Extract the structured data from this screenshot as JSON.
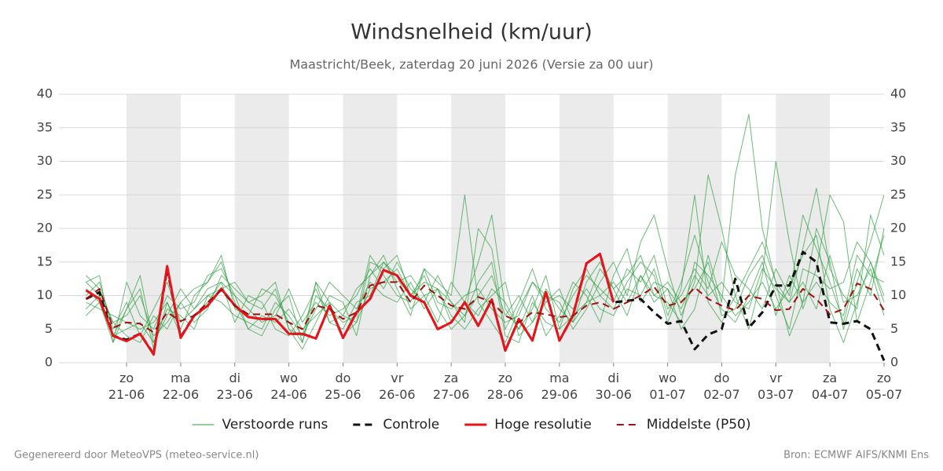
{
  "chart_data": {
    "type": "line",
    "title": "Windsnelheid (km/uur)",
    "subtitle": "Maastricht/Beek, zaterdag 20 juni 2026 (Versie za 00 uur)",
    "footer_left": "Gegenereerd door MeteoVPS (meteo-service.nl)",
    "footer_right": "Bron: ECMWF AIFS/KNMI Ens",
    "xlim": [
      -0.25,
      15
    ],
    "ylim": [
      0,
      40
    ],
    "yticks": [
      0,
      5,
      10,
      15,
      20,
      25,
      30,
      35,
      40
    ],
    "xticks": [
      {
        "value": 1,
        "label": "zo 21-06"
      },
      {
        "value": 2,
        "label": "ma 22-06"
      },
      {
        "value": 3,
        "label": "di 23-06"
      },
      {
        "value": 4,
        "label": "wo 24-06"
      },
      {
        "value": 5,
        "label": "do 25-06"
      },
      {
        "value": 6,
        "label": "vr 26-06"
      },
      {
        "value": 7,
        "label": "za 27-06"
      },
      {
        "value": 8,
        "label": "zo 28-06"
      },
      {
        "value": 9,
        "label": "ma 29-06"
      },
      {
        "value": 10,
        "label": "di 30-06"
      },
      {
        "value": 11,
        "label": "wo 01-07"
      },
      {
        "value": 12,
        "label": "do 02-07"
      },
      {
        "value": 13,
        "label": "vr 03-07"
      },
      {
        "value": 14,
        "label": "za 04-07"
      },
      {
        "value": 15,
        "label": "zo 05-07"
      }
    ],
    "grid": true,
    "shade_alternate_days": true,
    "right_axis": true,
    "x": [
      0.25,
      0.5,
      0.75,
      1,
      1.25,
      1.5,
      1.75,
      2,
      2.25,
      2.5,
      2.75,
      3,
      3.25,
      3.5,
      3.75,
      4,
      4.25,
      4.5,
      4.75,
      5,
      5.25,
      5.5,
      5.75,
      6,
      6.25,
      6.5,
      6.75,
      7,
      7.25,
      7.5,
      7.75,
      8,
      8.25,
      8.5,
      8.75,
      9,
      9.25,
      9.5,
      9.75,
      10,
      10.25,
      10.5,
      10.75,
      11,
      11.25,
      11.5,
      11.75,
      12,
      12.25,
      12.5,
      12.75,
      13,
      13.25,
      13.5,
      13.75,
      14,
      14.25,
      14.5,
      14.75,
      15
    ],
    "ensemble": {
      "name": "Verstoorde runs",
      "color": "#2e9e3e",
      "members": [
        [
          12,
          13,
          3,
          8,
          11,
          2,
          9,
          5,
          10,
          12,
          15,
          9,
          5,
          4,
          8,
          10,
          3,
          12,
          9,
          4,
          6,
          15,
          14,
          16,
          10,
          13,
          8,
          5,
          7,
          12,
          15,
          4,
          3,
          9,
          6,
          5,
          11,
          14,
          10,
          8,
          12,
          15,
          13,
          6,
          11,
          25,
          9,
          6,
          10,
          14,
          18,
          12,
          4,
          9,
          20,
          15,
          5,
          12,
          18,
          25
        ],
        [
          8,
          10,
          6,
          4,
          3,
          7,
          5,
          9,
          6,
          8,
          13,
          11,
          9,
          10,
          12,
          5,
          2,
          6,
          10,
          9,
          4,
          13,
          16,
          11,
          7,
          14,
          12,
          10,
          25,
          9,
          6,
          3,
          8,
          12,
          10,
          9,
          5,
          8,
          12,
          15,
          10,
          18,
          22,
          14,
          7,
          12,
          28,
          20,
          10,
          5,
          13,
          30,
          18,
          8,
          14,
          25,
          21,
          6,
          12,
          19
        ],
        [
          10,
          12,
          5,
          9,
          4,
          8,
          12,
          6,
          8,
          11,
          12,
          6,
          10,
          9,
          5,
          4,
          7,
          11,
          6,
          5,
          9,
          10,
          15,
          13,
          8,
          10,
          6,
          12,
          9,
          15,
          22,
          8,
          5,
          10,
          4,
          7,
          12,
          10,
          6,
          13,
          17,
          9,
          12,
          11,
          5,
          8,
          16,
          9,
          28,
          37,
          20,
          12,
          9,
          17,
          26,
          14,
          10,
          8,
          22,
          16
        ],
        [
          7,
          9,
          4,
          5,
          6,
          3,
          8,
          7,
          5,
          10,
          9,
          7,
          6,
          5,
          9,
          7,
          4,
          8,
          12,
          10,
          8,
          12,
          10,
          9,
          12,
          8,
          11,
          7,
          5,
          8,
          10,
          12,
          4,
          6,
          11,
          8,
          6,
          9,
          14,
          11,
          7,
          13,
          10,
          9,
          6,
          15,
          13,
          10,
          7,
          9,
          12,
          8,
          11,
          16,
          19,
          8,
          3,
          9,
          15,
          10
        ],
        [
          11,
          9,
          3,
          12,
          7,
          5,
          10,
          8,
          9,
          13,
          14,
          10,
          8,
          6,
          7,
          11,
          6,
          9,
          7,
          8,
          10,
          14,
          11,
          15,
          11,
          9,
          13,
          9,
          6,
          20,
          17,
          5,
          9,
          14,
          8,
          6,
          10,
          13,
          11,
          9,
          14,
          12,
          16,
          8,
          10,
          14,
          11,
          18,
          13,
          11,
          8,
          14,
          10,
          22,
          17,
          12,
          6,
          14,
          10,
          20
        ],
        [
          13,
          11,
          6,
          7,
          10,
          4,
          6,
          9,
          11,
          12,
          16,
          8,
          7,
          11,
          10,
          6,
          3,
          10,
          8,
          6,
          7,
          16,
          13,
          10,
          9,
          14,
          9,
          8,
          10,
          11,
          8,
          6,
          7,
          12,
          9,
          10,
          8,
          11,
          8,
          7,
          11,
          10,
          14,
          7,
          12,
          19,
          12,
          8,
          6,
          10,
          15,
          7,
          13,
          9,
          12,
          9,
          7,
          16,
          13,
          12
        ],
        [
          9,
          8,
          7,
          6,
          5,
          6,
          9,
          4,
          7,
          9,
          12,
          10,
          5,
          7,
          6,
          8,
          5,
          7,
          9,
          7,
          6,
          11,
          12,
          14,
          10,
          12,
          11,
          6,
          9,
          7,
          11,
          9,
          5,
          8,
          13,
          5,
          7,
          9,
          10,
          12,
          9,
          13,
          9,
          11,
          8,
          13,
          10,
          12,
          9,
          8,
          14,
          11,
          9,
          12,
          8,
          16,
          9,
          10,
          14,
          7
        ],
        [
          12,
          10,
          4,
          8,
          13,
          3,
          7,
          11,
          8,
          10,
          11,
          12,
          9,
          8,
          11,
          5,
          4,
          12,
          6,
          7,
          11,
          13,
          15,
          12,
          13,
          10,
          11,
          9,
          7,
          10,
          13,
          7,
          10,
          6,
          9,
          11,
          6,
          12,
          15,
          11,
          13,
          16,
          10,
          12,
          9,
          11,
          15,
          7,
          8,
          13,
          16,
          10,
          5,
          14,
          13,
          11,
          12,
          18,
          15,
          9
        ]
      ]
    },
    "series": [
      {
        "name": "Controle",
        "color": "#111111",
        "dash": true,
        "width": 3,
        "values": [
          9.5,
          10.5,
          4,
          3.4,
          4.3,
          1.3,
          14,
          3.8,
          7,
          8.5,
          11,
          8.5,
          6.8,
          6.5,
          6.5,
          4.3,
          4.3,
          3.6,
          8.5,
          3.7,
          7.5,
          9.5,
          13.8,
          13,
          10,
          9,
          5,
          6,
          9,
          5.5,
          9.4,
          1.8,
          6.5,
          3.3,
          10.5,
          3.3,
          7,
          14.8,
          16.2,
          9,
          9.2,
          9.5,
          7.5,
          5.8,
          6.2,
          2,
          4.2,
          5,
          12.5,
          5.2,
          7.5,
          11.5,
          11.5,
          16.5,
          15,
          6,
          5.8,
          6.2,
          5,
          0.3
        ]
      },
      {
        "name": "Hoge resolutie",
        "color": "#e8141a",
        "dash": false,
        "width": 3,
        "values": [
          10.8,
          9.5,
          4,
          3.2,
          4.3,
          1.2,
          14.4,
          3.7,
          7,
          8.5,
          11,
          8.5,
          6.8,
          6.5,
          6.5,
          4.3,
          4.3,
          3.6,
          8.5,
          3.7,
          7.5,
          9.5,
          13.8,
          13,
          10,
          9,
          5,
          6,
          9,
          5.5,
          9.4,
          1.8,
          6.5,
          3.3,
          10.5,
          3.3,
          7,
          14.8,
          16.2,
          9,
          null,
          null,
          null,
          null,
          null,
          null,
          null,
          null,
          null,
          null,
          null,
          null,
          null,
          null,
          null,
          null,
          null,
          null,
          null,
          null
        ]
      },
      {
        "name": "Middelste (P50)",
        "color": "#a01010",
        "dash": true,
        "width": 2,
        "values": [
          9.5,
          11,
          5.2,
          6,
          5.8,
          4.5,
          7.5,
          6.2,
          7,
          9,
          10.8,
          8.5,
          7.2,
          7.2,
          7.2,
          6,
          5,
          8.5,
          8,
          6.5,
          7.5,
          11.5,
          12,
          12,
          9,
          11.5,
          10,
          8.5,
          8,
          9.8,
          9,
          7,
          6,
          7.5,
          7.2,
          6.8,
          7,
          8.5,
          9,
          8,
          9,
          10,
          11.3,
          8.5,
          9,
          11.2,
          9.5,
          8.5,
          7.8,
          10,
          9.5,
          7.8,
          8,
          11,
          9.5,
          7.2,
          8,
          11.8,
          11,
          7.8
        ]
      }
    ]
  }
}
